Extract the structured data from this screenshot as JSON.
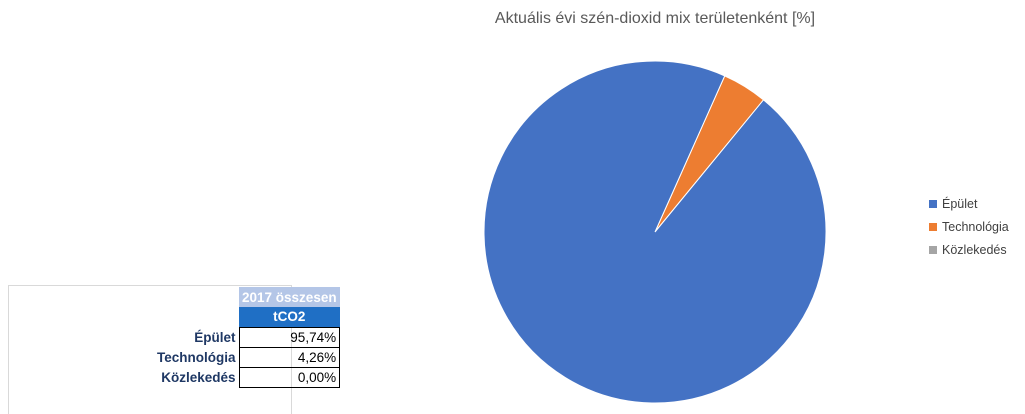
{
  "table": {
    "header_year": "2017 összesen",
    "header_unit": "tCO2",
    "rows": [
      {
        "label": "Épület",
        "value": "95,74%"
      },
      {
        "label": "Technológia",
        "value": "4,26%"
      },
      {
        "label": "Közlekedés",
        "value": "0,00%"
      }
    ]
  },
  "chart_data": {
    "type": "pie",
    "title": "Aktuális évi szén-dioxid mix területenként [%]",
    "categories": [
      "Épület",
      "Technológia",
      "Közlekedés"
    ],
    "values": [
      95.74,
      4.26,
      0.0
    ],
    "colors": [
      "#4472c4",
      "#ed7d31",
      "#a5a5a5"
    ],
    "legend": "right"
  }
}
